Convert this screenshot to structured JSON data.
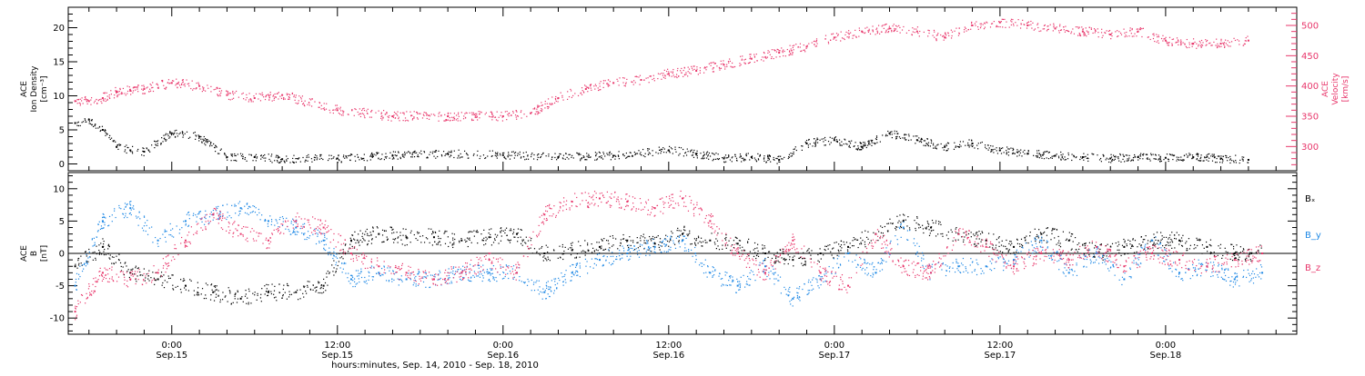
{
  "colors": {
    "black": "#000000",
    "pink": "#e8366b",
    "blue": "#1e88e5"
  },
  "footer": {
    "xlabel": "hours:minutes, Sep. 14, 2010 - Sep. 18, 2010"
  },
  "chart_data": [
    {
      "type": "scatter",
      "panel": "top",
      "ylabel_left": [
        "ACE",
        "Ion Density",
        "[cm⁻³]"
      ],
      "ylabel_right": [
        "ACE",
        "Velocity",
        "[km/s]"
      ],
      "ylim_left": [
        -1,
        23
      ],
      "ylim_right": [
        260,
        530
      ],
      "yticks_left": [
        0,
        5,
        10,
        15,
        20
      ],
      "yticks_right": [
        300,
        350,
        400,
        450,
        500
      ],
      "x_unit": "hours since 2010-09-14 00:00",
      "xlim": [
        16.5,
        105.5
      ],
      "series": [
        {
          "name": "Ion Density",
          "axis": "left",
          "color": "black",
          "x": [
            17,
            18,
            19,
            20,
            21,
            22,
            24,
            26,
            28,
            30,
            32,
            36,
            40,
            44,
            48,
            52,
            56,
            60,
            62,
            64,
            66,
            68,
            70,
            72,
            74,
            76,
            78,
            80,
            82,
            84,
            86,
            88,
            90,
            92,
            94,
            96,
            98,
            100,
            102
          ],
          "y": [
            6,
            6.5,
            5,
            2.5,
            2,
            1.8,
            4.5,
            4,
            1,
            1,
            0.7,
            0.8,
            1.2,
            1.5,
            1.3,
            1,
            1.2,
            2,
            1.5,
            0.8,
            1,
            0.6,
            3,
            3.5,
            2.5,
            4.5,
            3.5,
            2.5,
            3,
            2,
            1.5,
            1.2,
            1,
            0.8,
            1,
            0.9,
            1,
            0.8,
            0.6
          ]
        },
        {
          "name": "Velocity",
          "axis": "right",
          "color": "pink",
          "x": [
            17,
            18,
            19,
            20,
            21,
            22,
            24,
            26,
            28,
            30,
            32,
            36,
            40,
            44,
            48,
            50,
            52,
            54,
            56,
            58,
            60,
            62,
            64,
            66,
            68,
            70,
            72,
            74,
            76,
            78,
            80,
            82,
            84,
            86,
            88,
            90,
            92,
            94,
            96,
            98,
            100,
            102
          ],
          "y": [
            375,
            375,
            380,
            390,
            392,
            395,
            405,
            400,
            385,
            380,
            385,
            360,
            350,
            350,
            350,
            355,
            380,
            395,
            405,
            410,
            420,
            425,
            435,
            445,
            455,
            465,
            480,
            490,
            495,
            490,
            480,
            500,
            505,
            500,
            495,
            490,
            485,
            490,
            475,
            470,
            470,
            475
          ]
        }
      ]
    },
    {
      "type": "scatter",
      "panel": "bottom",
      "ylabel_left": [
        "ACE",
        "B",
        "[nT]"
      ],
      "ylim": [
        -12.5,
        12.5
      ],
      "yticks": [
        -10,
        -5,
        0,
        5,
        10
      ],
      "zero_line": true,
      "x_unit": "hours since 2010-09-14 00:00",
      "xlim": [
        16.5,
        105.5
      ],
      "xticks": [
        "0:00",
        "12:00",
        "0:00",
        "12:00",
        "0:00",
        "12:00",
        "0:00"
      ],
      "xtick_dates": [
        "Sep.15",
        "Sep.15",
        "Sep.16",
        "Sep.16",
        "Sep.17",
        "Sep.17",
        "Sep.18"
      ],
      "xtick_values": [
        24,
        36,
        48,
        60,
        72,
        84,
        96
      ],
      "legend": "right",
      "series": [
        {
          "name": "Bₓ",
          "color": "black",
          "x": [
            17,
            19,
            21,
            23,
            25,
            27,
            29,
            31,
            33,
            35,
            37,
            39,
            41,
            43,
            45,
            47,
            49,
            51,
            53,
            55,
            57,
            59,
            61,
            63,
            65,
            67,
            69,
            71,
            73,
            75,
            77,
            79,
            81,
            83,
            85,
            87,
            89,
            91,
            93,
            95,
            97,
            99,
            101,
            103
          ],
          "y": [
            -2,
            1,
            -3,
            -4,
            -5,
            -6,
            -7,
            -6,
            -6,
            -5,
            2,
            3,
            2.5,
            2.5,
            2,
            2.5,
            3,
            0,
            0.5,
            1,
            2,
            1.5,
            3,
            2,
            1.5,
            0,
            -1,
            0,
            1,
            3,
            5,
            4,
            3,
            2,
            1,
            3,
            2,
            0,
            1,
            2,
            2,
            1,
            0,
            0
          ]
        },
        {
          "name": "B_y",
          "color": "blue",
          "x": [
            17,
            19,
            21,
            23,
            25,
            27,
            29,
            31,
            33,
            35,
            37,
            39,
            41,
            43,
            45,
            47,
            49,
            51,
            53,
            55,
            57,
            59,
            61,
            63,
            65,
            67,
            69,
            71,
            73,
            75,
            77,
            79,
            81,
            83,
            85,
            87,
            89,
            91,
            93,
            95,
            97,
            99,
            101,
            103
          ],
          "y": [
            -5,
            5,
            7,
            2,
            5,
            6,
            7,
            5,
            4,
            2,
            -4,
            -3,
            -4,
            -4,
            -3,
            -3,
            -3,
            -6,
            -3,
            -1,
            0,
            1,
            2,
            -3,
            -5,
            -2,
            -7,
            -4,
            0,
            -3,
            4,
            -3,
            -2,
            -2,
            -1,
            2,
            -3,
            0,
            -4,
            2,
            -3,
            -2,
            -4,
            -3
          ]
        },
        {
          "name": "B_z",
          "color": "pink",
          "x": [
            17,
            19,
            21,
            23,
            25,
            27,
            29,
            31,
            33,
            35,
            37,
            39,
            41,
            43,
            45,
            47,
            49,
            51,
            53,
            55,
            57,
            59,
            61,
            63,
            65,
            67,
            69,
            71,
            73,
            75,
            77,
            79,
            81,
            83,
            85,
            87,
            89,
            91,
            93,
            95,
            97,
            99,
            101,
            103
          ],
          "y": [
            -9,
            -3,
            -4,
            -3,
            2,
            6,
            3,
            2,
            5,
            4,
            0,
            -2,
            -3,
            -4,
            -3,
            -1,
            -3,
            6,
            8,
            8.5,
            8,
            7,
            8.5,
            5,
            0,
            -3,
            2,
            -3,
            -5,
            3,
            -2,
            -3,
            3,
            1,
            -2,
            0,
            -1,
            1,
            -2,
            0,
            -1,
            -2,
            -1,
            0
          ]
        }
      ]
    }
  ]
}
